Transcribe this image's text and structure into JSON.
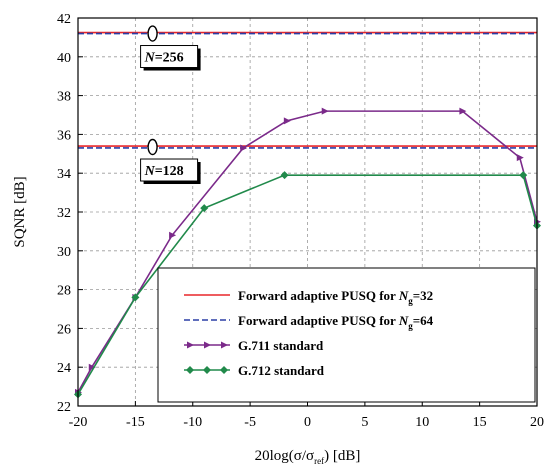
{
  "chart_data": {
    "type": "line",
    "xlabel": "20log(σ/σ_ref) [dB]",
    "ylabel": "SQNR [dB]",
    "xlim": [
      -20,
      20
    ],
    "ylim": [
      22,
      42
    ],
    "xticks": [
      -20,
      -15,
      -10,
      -5,
      0,
      5,
      10,
      15,
      20
    ],
    "yticks": [
      22,
      24,
      26,
      28,
      30,
      32,
      34,
      36,
      38,
      40,
      42
    ],
    "grid": true,
    "legend_position": "bottom-right",
    "series": [
      {
        "name": "Forward adaptive PUSQ for Ng=32",
        "label_main": "Forward adaptive PUSQ for ",
        "label_var": "N",
        "label_sub": "g",
        "label_tail": "=32",
        "color": "#e8262a",
        "style": "solid",
        "marker": "none",
        "groups": [
          {
            "x": [
              -20,
              20
            ],
            "y": [
              41.25,
              41.25
            ]
          },
          {
            "x": [
              -20,
              20
            ],
            "y": [
              35.4,
              35.4
            ]
          }
        ]
      },
      {
        "name": "Forward adaptive PUSQ for Ng=64",
        "label_main": "Forward adaptive PUSQ for ",
        "label_var": "N",
        "label_sub": "g",
        "label_tail": "=64",
        "color": "#2b3fa6",
        "style": "dashed",
        "marker": "none",
        "groups": [
          {
            "x": [
              -20,
              20
            ],
            "y": [
              41.2,
              41.2
            ]
          },
          {
            "x": [
              -20,
              20
            ],
            "y": [
              35.3,
              35.3
            ]
          }
        ]
      },
      {
        "name": "G.711 standard",
        "label_main": "G.711 standard",
        "color": "#7b2a8a",
        "style": "solid",
        "marker": "triangle-right",
        "groups": [
          {
            "x": [
              -20,
              -18.8,
              -15,
              -11.8,
              -5.6,
              -1.8,
              1.5,
              13.5,
              18.5,
              20
            ],
            "y": [
              22.7,
              24.0,
              27.6,
              30.8,
              35.3,
              36.7,
              37.2,
              37.2,
              34.8,
              31.5
            ]
          }
        ]
      },
      {
        "name": "G.712 standard",
        "label_main": "G.712 standard",
        "color": "#218a4b",
        "style": "solid",
        "marker": "diamond",
        "groups": [
          {
            "x": [
              -20,
              -15,
              -9,
              -2,
              18.8,
              20
            ],
            "y": [
              22.6,
              27.6,
              32.2,
              33.9,
              33.9,
              31.3
            ]
          }
        ]
      }
    ],
    "annotations": [
      {
        "label_var": "N",
        "label_tail": "=256",
        "x": -13.5,
        "y": 41.2
      },
      {
        "label_var": "N",
        "label_tail": "=128",
        "x": -13.5,
        "y": 35.35
      }
    ]
  }
}
